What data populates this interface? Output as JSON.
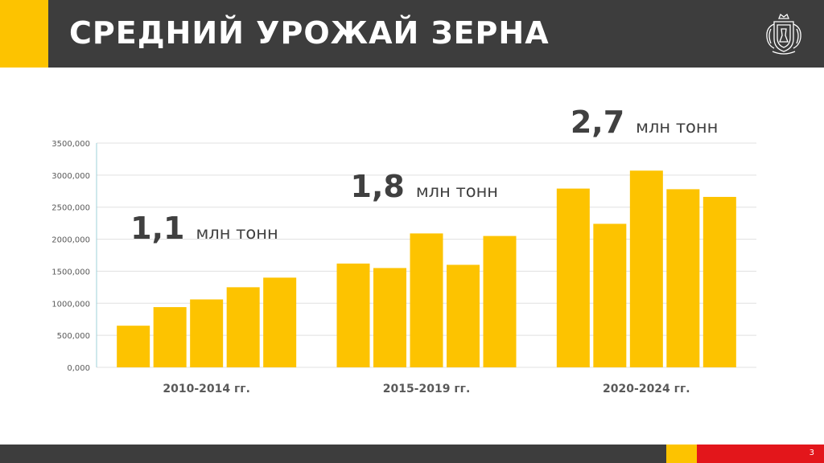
{
  "slide": {
    "title": "СРЕДНИЙ УРОЖАЙ ЗЕРНА",
    "page_number": "3",
    "emblem_icon": "coat-of-arms-icon",
    "colors": {
      "header": "#3d3d3d",
      "accent_yellow": "#fdc300",
      "accent_red": "#e3161b",
      "bar": "#fdc300"
    }
  },
  "chart_data": {
    "type": "bar",
    "title": "",
    "xlabel": "",
    "ylabel": "",
    "ylim": [
      0,
      3500000
    ],
    "yticks": [
      0,
      500000,
      1000000,
      1500000,
      2000000,
      2500000,
      3000000,
      3500000
    ],
    "ytick_labels": [
      "0,000",
      "500,000",
      "1000,000",
      "1500,000",
      "2000,000",
      "2500,000",
      "3000,000",
      "3500,000"
    ],
    "grid": true,
    "legend": "none",
    "groups": [
      {
        "label": "2010-2014 гг.",
        "values": [
          650000,
          940000,
          1060000,
          1250000,
          1400000
        ],
        "annotation_value": "1,1",
        "annotation_unit": "млн тонн"
      },
      {
        "label": "2015-2019 гг.",
        "values": [
          1620000,
          1550000,
          2090000,
          1600000,
          2050000
        ],
        "annotation_value": "1,8",
        "annotation_unit": "млн тонн"
      },
      {
        "label": "2020-2024 гг.",
        "values": [
          2790000,
          2240000,
          3070000,
          2780000,
          2660000
        ],
        "annotation_value": "2,7",
        "annotation_unit": "млн тонн"
      }
    ]
  }
}
